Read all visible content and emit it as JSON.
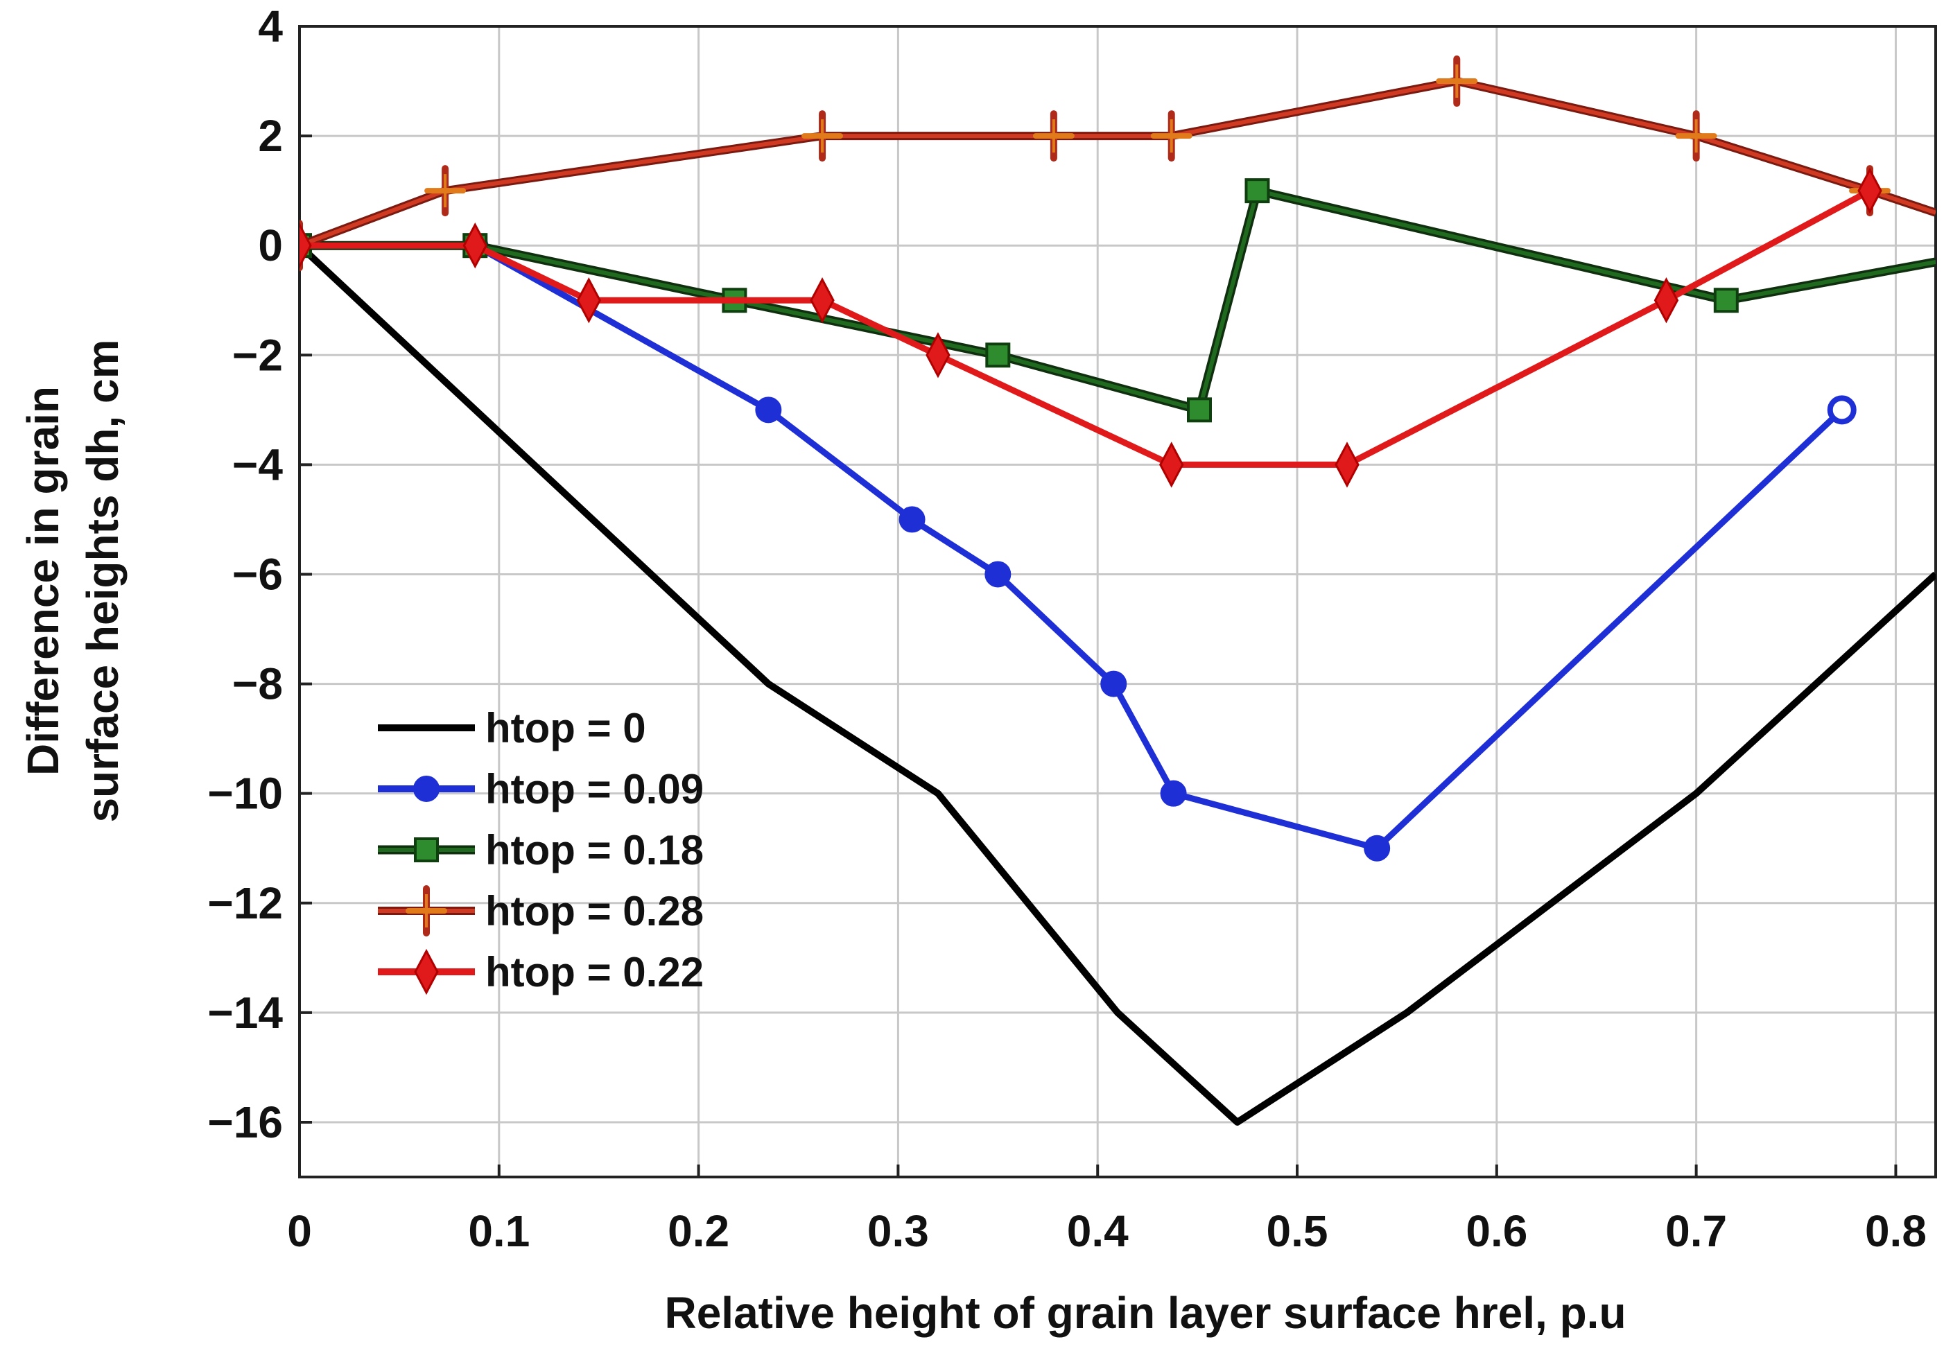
{
  "chart_data": {
    "type": "line",
    "title": "",
    "xlabel": "Relative height of grain layer surface hrel, p.u",
    "ylabel_lines": [
      "Difference in grain",
      "surface heights dh, cm"
    ],
    "xlim": [
      0,
      0.82
    ],
    "ylim": [
      -17,
      4
    ],
    "x_ticks": [
      0,
      0.1,
      0.2,
      0.3,
      0.4,
      0.5,
      0.6,
      0.7,
      0.8
    ],
    "x_tick_labels": [
      "0",
      "0.1",
      "0.2",
      "0.3",
      "0.4",
      "0.5",
      "0.6",
      "0.7",
      "0.8"
    ],
    "y_ticks": [
      4,
      2,
      0,
      -2,
      -4,
      -6,
      -8,
      -10,
      -12,
      -14,
      -16
    ],
    "y_tick_labels": [
      "4",
      "2",
      "0",
      "−2",
      "−4",
      "−6",
      "−8",
      "−10",
      "−12",
      "−14",
      "−16"
    ],
    "grid": true,
    "legend_position": "bottom-left",
    "series": [
      {
        "name": "htop = 0",
        "color": "#000000",
        "marker": "none",
        "x": [
          0,
          0.235,
          0.32,
          0.41,
          0.47,
          0.555,
          0.7,
          0.82
        ],
        "y": [
          0,
          -8,
          -10,
          -14,
          -16,
          -14,
          -10,
          -6
        ]
      },
      {
        "name": "htop = 0.09",
        "color": "#1e2fd6",
        "marker": "circle",
        "x": [
          0,
          0.088,
          0.235,
          0.307,
          0.35,
          0.408,
          0.438,
          0.54,
          0.773
        ],
        "y": [
          0,
          0,
          -3,
          -5,
          -6,
          -8,
          -10,
          -11,
          -3
        ],
        "last_marker_hollow": true
      },
      {
        "name": "htop = 0.18",
        "color": "#1a5c1a",
        "marker": "square",
        "x": [
          0,
          0.088,
          0.218,
          0.35,
          0.451,
          0.48,
          0.715,
          0.82
        ],
        "y": [
          0,
          0,
          -1,
          -2,
          -3,
          1,
          -1,
          -0.3
        ]
      },
      {
        "name": "htop = 0.28",
        "color": "#b02a1a",
        "marker": "plus",
        "x": [
          0,
          0.073,
          0.262,
          0.378,
          0.437,
          0.58,
          0.7,
          0.787,
          0.82
        ],
        "y": [
          0,
          1,
          2,
          2,
          2,
          3,
          2,
          1,
          0.6
        ]
      },
      {
        "name": "htop = 0.22",
        "color": "#e01a1a",
        "marker": "diamond",
        "x": [
          0,
          0.088,
          0.145,
          0.262,
          0.32,
          0.437,
          0.525,
          0.685,
          0.787
        ],
        "y": [
          0,
          0,
          -1,
          -1,
          -2,
          -4,
          -4,
          -1,
          1
        ]
      }
    ]
  }
}
